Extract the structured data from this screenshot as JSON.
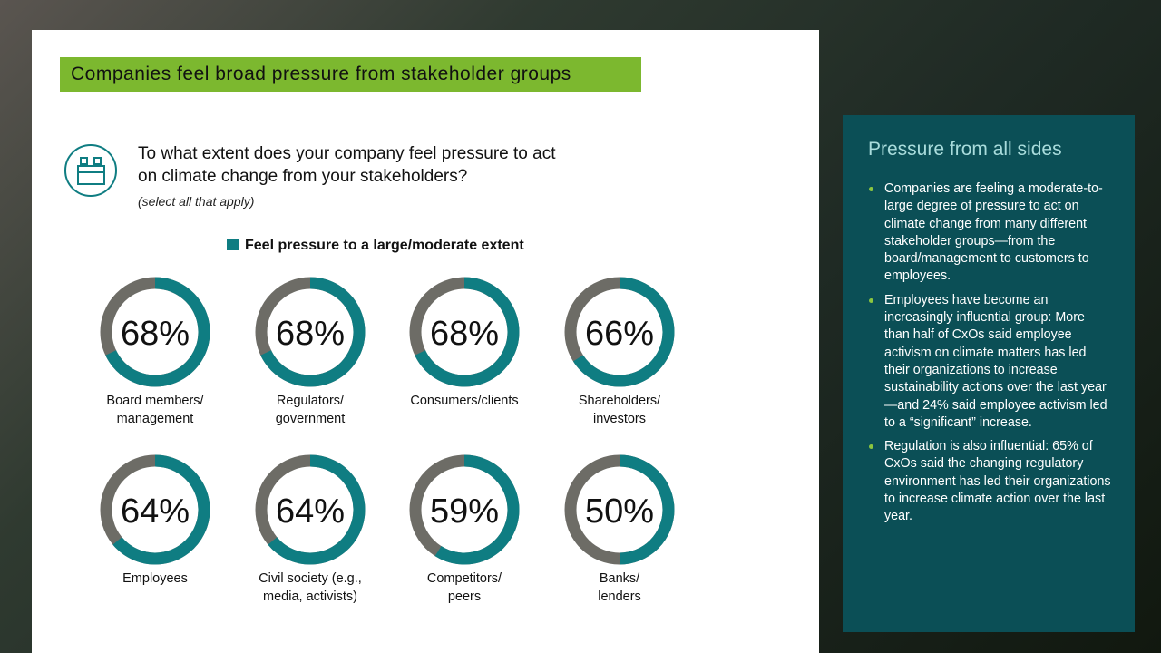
{
  "header": {
    "title": "Companies feel broad pressure from stakeholder groups"
  },
  "question": "To what extent does your company feel pressure to act on climate change from your stakeholders?",
  "note": "(select all that apply)",
  "chart_data": {
    "type": "donut",
    "categories": [
      "Board members/\nmanagement",
      "Regulators/\ngovernment",
      "Consumers/clients",
      "Shareholders/\ninvestors",
      "Employees",
      "Civil society (e.g.,\nmedia, activists)",
      "Competitors/\npeers",
      "Banks/\nlenders"
    ],
    "series": [
      {
        "name": "Feel pressure to a large/moderate extent",
        "color": "#0f7d82",
        "values": [
          68,
          68,
          68,
          66,
          64,
          64,
          59,
          50
        ],
        "value_labels": [
          "68%",
          "68%",
          "68%",
          "66%",
          "64%",
          "64%",
          "59%",
          "50%"
        ]
      }
    ],
    "track_color": "#6d6c66"
  },
  "panel": {
    "title": "Pressure from all sides",
    "bullets": [
      "Companies are feeling a moderate-to-large degree of pressure to act on climate change from many different stakeholder groups—from the board/management to customers to employees.",
      "Employees have become an increasingly influential group: More than half of CxOs said employee activism on climate matters has led their organizations to increase sustainability actions over the last year—and 24% said employee activism led to a “significant” increase.",
      "Regulation is also influential: 65% of CxOs said the changing regulatory environment has led their organizations to increase climate action over the last year."
    ]
  }
}
